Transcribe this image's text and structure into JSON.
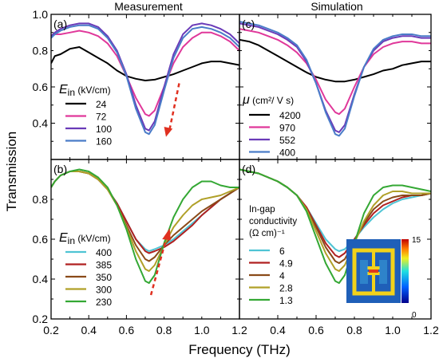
{
  "column_titles": {
    "left": "Measurement",
    "right": "Simulation"
  },
  "xlabel": "Frequency (THz)",
  "ylabel": "Transmission",
  "colors": {
    "black": "#000000",
    "magenta": "#e0389a",
    "purple": "#6a3ab8",
    "blue": "#4a7cc8",
    "cyan": "#4fc4d4",
    "dark_red": "#b02020",
    "brown": "#8a4a18",
    "olive": "#b0a028",
    "green": "#34a834",
    "arrow": "#e03020"
  },
  "inset": {
    "colorbar_max": "15",
    "colorbar_min": "0"
  },
  "chart_data": [
    {
      "id": "a",
      "panel_label": "(a)",
      "type": "line",
      "legend_title_symbol": "E",
      "legend_title_sub": "in",
      "legend_title_unit": " (kV/cm)",
      "xlim": [
        0.2,
        1.2
      ],
      "ylim": [
        0.2,
        1.0
      ],
      "yticks": [
        "0.4",
        "0.6",
        "0.8",
        "1.0"
      ],
      "xticks": [],
      "arrow": "down",
      "series": [
        {
          "name": "24",
          "color": "#000000",
          "x": [
            0.2,
            0.22,
            0.25,
            0.3,
            0.35,
            0.4,
            0.45,
            0.5,
            0.55,
            0.6,
            0.65,
            0.7,
            0.75,
            0.8,
            0.85,
            0.9,
            0.95,
            1.0,
            1.05,
            1.1,
            1.15,
            1.2
          ],
          "y": [
            0.73,
            0.77,
            0.78,
            0.81,
            0.82,
            0.79,
            0.76,
            0.73,
            0.69,
            0.66,
            0.645,
            0.635,
            0.64,
            0.655,
            0.67,
            0.69,
            0.71,
            0.73,
            0.74,
            0.74,
            0.73,
            0.72
          ]
        },
        {
          "name": "72",
          "color": "#e0389a",
          "x": [
            0.2,
            0.22,
            0.25,
            0.3,
            0.35,
            0.4,
            0.45,
            0.5,
            0.55,
            0.6,
            0.65,
            0.7,
            0.72,
            0.75,
            0.8,
            0.85,
            0.9,
            0.95,
            1.0,
            1.05,
            1.1,
            1.15,
            1.2
          ],
          "y": [
            0.88,
            0.89,
            0.89,
            0.9,
            0.91,
            0.9,
            0.88,
            0.84,
            0.77,
            0.66,
            0.54,
            0.45,
            0.44,
            0.47,
            0.6,
            0.73,
            0.82,
            0.87,
            0.9,
            0.9,
            0.88,
            0.85,
            0.8
          ]
        },
        {
          "name": "100",
          "color": "#6a3ab8",
          "x": [
            0.2,
            0.22,
            0.25,
            0.3,
            0.35,
            0.4,
            0.45,
            0.5,
            0.55,
            0.6,
            0.65,
            0.7,
            0.72,
            0.75,
            0.8,
            0.85,
            0.9,
            0.95,
            1.0,
            1.05,
            1.1,
            1.15,
            1.2
          ],
          "y": [
            0.88,
            0.9,
            0.92,
            0.94,
            0.95,
            0.95,
            0.93,
            0.88,
            0.8,
            0.67,
            0.5,
            0.37,
            0.36,
            0.41,
            0.6,
            0.78,
            0.89,
            0.94,
            0.95,
            0.94,
            0.92,
            0.89,
            0.84
          ]
        },
        {
          "name": "160",
          "color": "#4a7cc8",
          "x": [
            0.2,
            0.22,
            0.25,
            0.3,
            0.35,
            0.4,
            0.45,
            0.5,
            0.55,
            0.6,
            0.65,
            0.7,
            0.72,
            0.75,
            0.8,
            0.85,
            0.9,
            0.95,
            1.0,
            1.05,
            1.1,
            1.15,
            1.2
          ],
          "y": [
            0.87,
            0.89,
            0.91,
            0.93,
            0.94,
            0.94,
            0.92,
            0.87,
            0.79,
            0.66,
            0.48,
            0.35,
            0.34,
            0.39,
            0.58,
            0.76,
            0.87,
            0.92,
            0.93,
            0.92,
            0.9,
            0.87,
            0.82
          ]
        }
      ]
    },
    {
      "id": "c",
      "panel_label": "(c)",
      "type": "line",
      "legend_title_symbol": "μ",
      "legend_title_sub": "",
      "legend_title_unit": " (cm²/ V s)",
      "xlim": [
        0.2,
        1.2
      ],
      "ylim": [
        0.2,
        1.0
      ],
      "yticks": [],
      "xticks": [],
      "arrow": "none",
      "series": [
        {
          "name": "4200",
          "color": "#000000",
          "x": [
            0.2,
            0.25,
            0.3,
            0.35,
            0.4,
            0.45,
            0.5,
            0.55,
            0.6,
            0.65,
            0.7,
            0.75,
            0.8,
            0.85,
            0.9,
            0.95,
            1.0,
            1.05,
            1.1,
            1.15,
            1.2
          ],
          "y": [
            0.86,
            0.85,
            0.83,
            0.8,
            0.77,
            0.74,
            0.71,
            0.68,
            0.655,
            0.64,
            0.63,
            0.63,
            0.64,
            0.655,
            0.67,
            0.69,
            0.7,
            0.72,
            0.73,
            0.74,
            0.74
          ]
        },
        {
          "name": "970",
          "color": "#e0389a",
          "x": [
            0.2,
            0.25,
            0.3,
            0.35,
            0.4,
            0.45,
            0.5,
            0.55,
            0.6,
            0.65,
            0.7,
            0.72,
            0.75,
            0.8,
            0.85,
            0.9,
            0.95,
            1.0,
            1.05,
            1.1,
            1.15,
            1.2
          ],
          "y": [
            0.92,
            0.91,
            0.9,
            0.88,
            0.86,
            0.83,
            0.79,
            0.73,
            0.64,
            0.53,
            0.46,
            0.45,
            0.48,
            0.6,
            0.71,
            0.78,
            0.82,
            0.84,
            0.85,
            0.85,
            0.84,
            0.84
          ]
        },
        {
          "name": "552",
          "color": "#6a3ab8",
          "x": [
            0.2,
            0.25,
            0.3,
            0.35,
            0.4,
            0.45,
            0.5,
            0.55,
            0.6,
            0.65,
            0.7,
            0.72,
            0.75,
            0.8,
            0.85,
            0.9,
            0.95,
            1.0,
            1.05,
            1.1,
            1.15,
            1.2
          ],
          "y": [
            0.95,
            0.94,
            0.93,
            0.91,
            0.89,
            0.86,
            0.82,
            0.74,
            0.62,
            0.47,
            0.36,
            0.35,
            0.39,
            0.56,
            0.71,
            0.8,
            0.85,
            0.87,
            0.88,
            0.88,
            0.87,
            0.87
          ]
        },
        {
          "name": "400",
          "color": "#4a7cc8",
          "x": [
            0.2,
            0.25,
            0.3,
            0.35,
            0.4,
            0.45,
            0.5,
            0.55,
            0.6,
            0.65,
            0.7,
            0.72,
            0.75,
            0.8,
            0.85,
            0.9,
            0.95,
            1.0,
            1.05,
            1.1,
            1.15,
            1.2
          ],
          "y": [
            0.96,
            0.95,
            0.94,
            0.92,
            0.9,
            0.87,
            0.83,
            0.75,
            0.62,
            0.46,
            0.34,
            0.33,
            0.37,
            0.55,
            0.71,
            0.81,
            0.86,
            0.88,
            0.89,
            0.89,
            0.88,
            0.88
          ]
        }
      ]
    },
    {
      "id": "b",
      "panel_label": "(b)",
      "type": "line",
      "legend_title_symbol": "E",
      "legend_title_sub": "in",
      "legend_title_unit": " (kV/cm)",
      "xlim": [
        0.2,
        1.2
      ],
      "ylim": [
        0.2,
        1.0
      ],
      "yticks": [
        "0.2",
        "0.4",
        "0.6",
        "0.8"
      ],
      "xticks": [
        "0.2",
        "0.4",
        "0.6",
        "0.8",
        "1.0",
        "1.2"
      ],
      "arrow": "up",
      "series": [
        {
          "name": "400",
          "color": "#4fc4d4",
          "x": [
            0.2,
            0.22,
            0.25,
            0.3,
            0.35,
            0.4,
            0.45,
            0.5,
            0.55,
            0.6,
            0.65,
            0.7,
            0.72,
            0.75,
            0.8,
            0.85,
            0.9,
            0.95,
            1.0,
            1.05,
            1.1,
            1.15,
            1.2
          ],
          "y": [
            0.86,
            0.89,
            0.92,
            0.94,
            0.94,
            0.93,
            0.9,
            0.85,
            0.78,
            0.69,
            0.6,
            0.55,
            0.54,
            0.55,
            0.57,
            0.6,
            0.64,
            0.68,
            0.72,
            0.76,
            0.8,
            0.83,
            0.86
          ]
        },
        {
          "name": "385",
          "color": "#b02020",
          "x": [
            0.2,
            0.22,
            0.25,
            0.3,
            0.35,
            0.4,
            0.45,
            0.5,
            0.55,
            0.6,
            0.65,
            0.7,
            0.72,
            0.75,
            0.8,
            0.85,
            0.9,
            0.95,
            1.0,
            1.05,
            1.1,
            1.15,
            1.2
          ],
          "y": [
            0.86,
            0.89,
            0.92,
            0.94,
            0.94,
            0.93,
            0.9,
            0.85,
            0.78,
            0.69,
            0.6,
            0.54,
            0.53,
            0.54,
            0.56,
            0.59,
            0.63,
            0.67,
            0.72,
            0.76,
            0.8,
            0.83,
            0.86
          ]
        },
        {
          "name": "350",
          "color": "#8a4a18",
          "x": [
            0.2,
            0.22,
            0.25,
            0.3,
            0.35,
            0.4,
            0.45,
            0.5,
            0.55,
            0.6,
            0.65,
            0.7,
            0.72,
            0.75,
            0.8,
            0.85,
            0.9,
            0.95,
            1.0,
            1.05,
            1.1,
            1.15,
            1.2
          ],
          "y": [
            0.86,
            0.89,
            0.92,
            0.94,
            0.94,
            0.93,
            0.9,
            0.85,
            0.77,
            0.67,
            0.57,
            0.5,
            0.49,
            0.51,
            0.57,
            0.62,
            0.66,
            0.7,
            0.74,
            0.77,
            0.8,
            0.83,
            0.86
          ]
        },
        {
          "name": "300",
          "color": "#b0a028",
          "x": [
            0.2,
            0.22,
            0.25,
            0.3,
            0.35,
            0.4,
            0.45,
            0.5,
            0.55,
            0.6,
            0.65,
            0.7,
            0.72,
            0.75,
            0.8,
            0.85,
            0.9,
            0.95,
            1.0,
            1.05,
            1.1,
            1.15,
            1.2
          ],
          "y": [
            0.86,
            0.89,
            0.92,
            0.94,
            0.94,
            0.93,
            0.9,
            0.85,
            0.77,
            0.66,
            0.54,
            0.45,
            0.44,
            0.47,
            0.57,
            0.66,
            0.72,
            0.77,
            0.8,
            0.81,
            0.82,
            0.84,
            0.86
          ]
        },
        {
          "name": "230",
          "color": "#34a834",
          "x": [
            0.2,
            0.22,
            0.25,
            0.3,
            0.35,
            0.4,
            0.45,
            0.5,
            0.55,
            0.6,
            0.65,
            0.7,
            0.72,
            0.75,
            0.8,
            0.85,
            0.9,
            0.95,
            1.0,
            1.05,
            1.1,
            1.15,
            1.2
          ],
          "y": [
            0.86,
            0.89,
            0.92,
            0.94,
            0.95,
            0.94,
            0.91,
            0.86,
            0.77,
            0.65,
            0.5,
            0.39,
            0.38,
            0.42,
            0.58,
            0.71,
            0.8,
            0.86,
            0.89,
            0.89,
            0.87,
            0.86,
            0.86
          ]
        }
      ]
    },
    {
      "id": "d",
      "panel_label": "(d)",
      "type": "line",
      "legend_title_lines": [
        "In-gap",
        "conductivity",
        "(Ω cm)⁻¹"
      ],
      "xlim": [
        0.2,
        1.2
      ],
      "ylim": [
        0.2,
        1.0
      ],
      "yticks": [],
      "xticks": [
        "0.4",
        "0.6",
        "0.8",
        "1.0",
        "1.2"
      ],
      "arrow": "none",
      "series": [
        {
          "name": "6",
          "color": "#4fc4d4",
          "x": [
            0.2,
            0.25,
            0.3,
            0.35,
            0.4,
            0.45,
            0.5,
            0.55,
            0.6,
            0.65,
            0.7,
            0.72,
            0.75,
            0.8,
            0.85,
            0.9,
            0.95,
            1.0,
            1.05,
            1.1,
            1.15,
            1.2
          ],
          "y": [
            0.95,
            0.94,
            0.93,
            0.91,
            0.89,
            0.86,
            0.82,
            0.76,
            0.68,
            0.6,
            0.55,
            0.54,
            0.55,
            0.6,
            0.66,
            0.71,
            0.75,
            0.78,
            0.8,
            0.81,
            0.82,
            0.83
          ]
        },
        {
          "name": "4.9",
          "color": "#b02020",
          "x": [
            0.2,
            0.25,
            0.3,
            0.35,
            0.4,
            0.45,
            0.5,
            0.55,
            0.6,
            0.65,
            0.7,
            0.72,
            0.75,
            0.8,
            0.85,
            0.9,
            0.95,
            1.0,
            1.05,
            1.1,
            1.15,
            1.2
          ],
          "y": [
            0.95,
            0.94,
            0.93,
            0.91,
            0.89,
            0.86,
            0.82,
            0.76,
            0.67,
            0.58,
            0.52,
            0.51,
            0.53,
            0.6,
            0.67,
            0.73,
            0.77,
            0.79,
            0.81,
            0.82,
            0.82,
            0.83
          ]
        },
        {
          "name": "4",
          "color": "#8a4a18",
          "x": [
            0.2,
            0.25,
            0.3,
            0.35,
            0.4,
            0.45,
            0.5,
            0.55,
            0.6,
            0.65,
            0.7,
            0.72,
            0.75,
            0.8,
            0.85,
            0.9,
            0.95,
            1.0,
            1.05,
            1.1,
            1.15,
            1.2
          ],
          "y": [
            0.95,
            0.94,
            0.93,
            0.91,
            0.89,
            0.86,
            0.82,
            0.75,
            0.66,
            0.56,
            0.49,
            0.48,
            0.5,
            0.59,
            0.68,
            0.75,
            0.79,
            0.81,
            0.82,
            0.82,
            0.82,
            0.83
          ]
        },
        {
          "name": "2.8",
          "color": "#b0a028",
          "x": [
            0.2,
            0.25,
            0.3,
            0.35,
            0.4,
            0.45,
            0.5,
            0.55,
            0.6,
            0.65,
            0.7,
            0.72,
            0.75,
            0.8,
            0.85,
            0.9,
            0.95,
            1.0,
            1.05,
            1.1,
            1.15,
            1.2
          ],
          "y": [
            0.95,
            0.94,
            0.93,
            0.91,
            0.89,
            0.86,
            0.82,
            0.75,
            0.64,
            0.53,
            0.45,
            0.44,
            0.47,
            0.58,
            0.69,
            0.77,
            0.82,
            0.84,
            0.84,
            0.83,
            0.83,
            0.83
          ]
        },
        {
          "name": "1.3",
          "color": "#34a834",
          "x": [
            0.2,
            0.25,
            0.3,
            0.35,
            0.4,
            0.45,
            0.5,
            0.55,
            0.6,
            0.65,
            0.7,
            0.72,
            0.75,
            0.8,
            0.85,
            0.9,
            0.95,
            1.0,
            1.05,
            1.1,
            1.15,
            1.2
          ],
          "y": [
            0.95,
            0.94,
            0.93,
            0.91,
            0.89,
            0.86,
            0.82,
            0.74,
            0.61,
            0.48,
            0.39,
            0.38,
            0.42,
            0.58,
            0.73,
            0.82,
            0.86,
            0.87,
            0.87,
            0.86,
            0.85,
            0.84
          ]
        }
      ]
    }
  ]
}
